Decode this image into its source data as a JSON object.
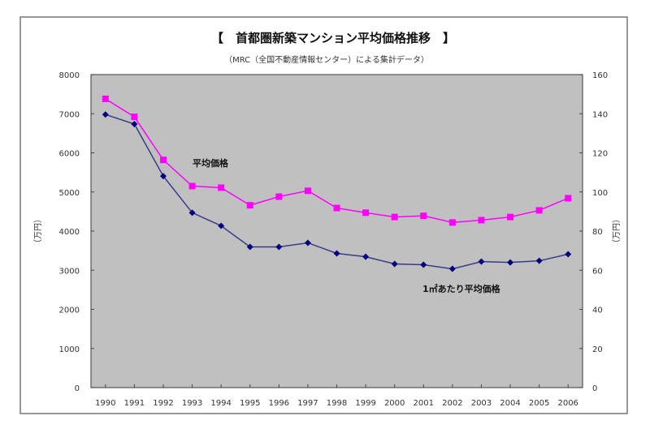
{
  "chart_data": {
    "type": "line",
    "title": "【　首都圏新築マンション平均価格推移　】",
    "subtitle": "（MRC（全国不動産情報センター）による集計データ）",
    "ylabel_left": "（万円）",
    "ylabel_right": "（万円）",
    "ylim_left": [
      0,
      8000
    ],
    "ylim_right": [
      0,
      160
    ],
    "yticks_left": [
      "0",
      "1000",
      "2000",
      "3000",
      "4000",
      "5000",
      "6000",
      "7000",
      "8000"
    ],
    "yticks_right": [
      "0",
      "20",
      "40",
      "60",
      "80",
      "100",
      "120",
      "140",
      "160"
    ],
    "grid": false,
    "categories": [
      "1990",
      "1991",
      "1992",
      "1993",
      "1994",
      "1995",
      "1996",
      "1997",
      "1998",
      "1999",
      "2000",
      "2001",
      "2002",
      "2003",
      "2004",
      "2005",
      "2006"
    ],
    "series": [
      {
        "name": "平均価格",
        "axis": "left",
        "color": "#ff00ff",
        "marker": "square",
        "values": [
          7380,
          6920,
          5820,
          5150,
          5110,
          4660,
          4880,
          5030,
          4590,
          4470,
          4360,
          4390,
          4220,
          4280,
          4360,
          4530,
          4840
        ]
      },
      {
        "name": "1㎡あたり平均価格",
        "axis": "right",
        "color": "#000080",
        "line_color": "#3a3a8a",
        "marker": "diamond",
        "values": [
          139.6,
          134.7,
          108.1,
          89.4,
          82.7,
          71.9,
          71.9,
          74.0,
          68.6,
          66.9,
          63.2,
          62.8,
          60.7,
          64.4,
          64.0,
          64.8,
          68.2
        ]
      }
    ],
    "plot_background": "#c0c0c0"
  }
}
